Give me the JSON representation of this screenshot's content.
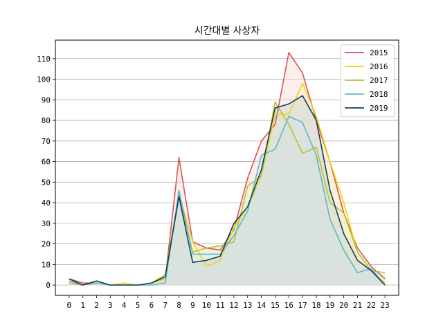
{
  "chart_data": {
    "type": "line",
    "title": "시간대별 사상자",
    "xlabel": "",
    "ylabel": "",
    "x": [
      0,
      1,
      2,
      3,
      4,
      5,
      6,
      7,
      8,
      9,
      10,
      11,
      12,
      13,
      14,
      15,
      16,
      17,
      18,
      19,
      20,
      21,
      22,
      23
    ],
    "xlim": [
      -1,
      24
    ],
    "ylim": [
      -5,
      119
    ],
    "yticks": [
      0,
      10,
      20,
      30,
      40,
      50,
      60,
      70,
      80,
      90,
      100,
      110
    ],
    "grid": "y",
    "legend_position": "top-right",
    "fill_under": true,
    "series": [
      {
        "name": "2015",
        "color": "#d9534f",
        "fill": "#f7d9d8",
        "values": [
          3,
          1,
          1,
          0,
          0,
          0,
          1,
          3,
          62,
          21,
          18,
          17,
          27,
          52,
          70,
          78,
          113,
          103,
          80,
          60,
          35,
          18,
          9,
          3
        ]
      },
      {
        "name": "2016",
        "color": "#f0d21a",
        "fill": "#fbf3c0",
        "values": [
          1,
          0,
          1,
          0,
          1,
          0,
          1,
          3,
          44,
          21,
          9,
          12,
          28,
          38,
          53,
          83,
          83,
          98,
          82,
          60,
          40,
          16,
          7,
          1
        ]
      },
      {
        "name": "2017",
        "color": "#b8c227",
        "fill": "#eef0c8",
        "values": [
          1,
          0,
          1,
          0,
          0,
          0,
          1,
          5,
          44,
          16,
          18,
          19,
          21,
          48,
          53,
          89,
          78,
          64,
          67,
          40,
          35,
          16,
          7,
          6
        ]
      },
      {
        "name": "2018",
        "color": "#5bb8c8",
        "fill": "#d6edf1",
        "values": [
          2,
          0,
          1,
          0,
          0,
          0,
          0,
          1,
          46,
          15,
          15,
          15,
          24,
          36,
          63,
          66,
          82,
          79,
          63,
          32,
          17,
          6,
          8,
          0
        ]
      },
      {
        "name": "2019",
        "color": "#0e3f5c",
        "fill": "#c9d3d9",
        "values": [
          3,
          0,
          2,
          0,
          0,
          0,
          1,
          4,
          43,
          11,
          12,
          14,
          30,
          38,
          56,
          86,
          88,
          92,
          80,
          46,
          25,
          12,
          7,
          0
        ]
      }
    ]
  }
}
